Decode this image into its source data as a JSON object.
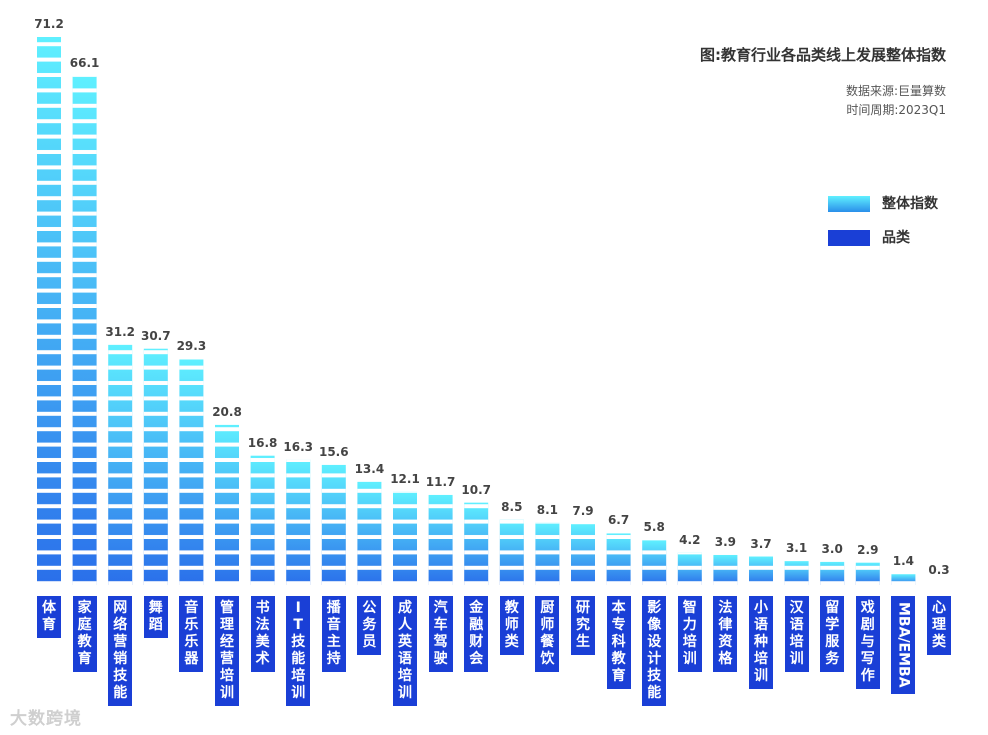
{
  "title": "图:教育行业各品类线上发展整体指数",
  "source": "数据来源:巨量算数",
  "period": "时间周期:2023Q1",
  "legend": [
    {
      "label": "整体指数",
      "color": "#3fc3f5"
    },
    {
      "label": "品类",
      "color": "#1a3fd6"
    }
  ],
  "watermark": "大数跨境",
  "chart_data": {
    "type": "bar",
    "title": "图:教育行业各品类线上发展整体指数",
    "series": [
      {
        "name": "整体指数",
        "values": [
          71.2,
          66.1,
          31.2,
          30.7,
          29.3,
          20.8,
          16.8,
          16.3,
          15.6,
          13.4,
          12.1,
          11.7,
          10.7,
          8.5,
          8.1,
          7.9,
          6.7,
          5.8,
          4.2,
          3.9,
          3.7,
          3.1,
          3.0,
          2.9,
          1.4,
          0.3
        ]
      }
    ],
    "categories": [
      "体育",
      "家庭教育",
      "网络营销技能",
      "舞蹈",
      "音乐乐器",
      "管理经营培训",
      "书法美术",
      "IT技能培训",
      "播音主持",
      "公务员",
      "成人英语培训",
      "汽车驾驶",
      "金融财会",
      "教师类",
      "厨师餐饮",
      "研究生",
      "本专科教育",
      "影像设计技能",
      "智力培训",
      "法律资格",
      "小语种培训",
      "汉语培训",
      "留学服务",
      "戏剧与写作",
      "MBA/EMBA",
      "心理类"
    ],
    "values": [
      71.2,
      66.1,
      31.2,
      30.7,
      29.3,
      20.8,
      16.8,
      16.3,
      15.6,
      13.4,
      12.1,
      11.7,
      10.7,
      8.5,
      8.1,
      7.9,
      6.7,
      5.8,
      4.2,
      3.9,
      3.7,
      3.1,
      3.0,
      2.9,
      1.4,
      0.3
    ],
    "value_labels": [
      "71.2",
      "66.1",
      "31.2",
      "30.7",
      "29.3",
      "20.8",
      "16.8",
      "16.3",
      "15.6",
      "13.4",
      "12.1",
      "11.7",
      "10.7",
      "8.5",
      "8.1",
      "7.9",
      "6.7",
      "5.8",
      "4.2",
      "3.9",
      "3.7",
      "3.1",
      "3.0",
      "2.9",
      "1.4",
      "0.3"
    ],
    "legend_position": "right",
    "grid": false
  }
}
